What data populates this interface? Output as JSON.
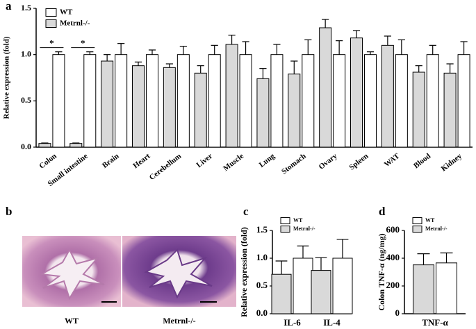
{
  "panels": [
    "a",
    "b",
    "c",
    "d"
  ],
  "micrographs": [
    "WT",
    "Metrnl-/-"
  ],
  "chart_data": [
    {
      "type": "bar",
      "ylabel": "Relative expression (fold)",
      "categories": [
        "Colon",
        "Small intestine",
        "Brain",
        "Heart",
        "Cerebellum",
        "Liver",
        "Muscle",
        "Lung",
        "Stomach",
        "Ovary",
        "Spleen",
        "WAT",
        "Blood",
        "Kidney"
      ],
      "series": [
        {
          "name": "WT",
          "color": "#ffffff",
          "values": [
            1.0,
            1.0,
            1.0,
            1.0,
            1.0,
            1.0,
            1.0,
            1.0,
            1.0,
            1.0,
            1.0,
            1.0,
            1.0,
            1.0
          ],
          "errors": [
            0.03,
            0.03,
            0.12,
            0.05,
            0.09,
            0.1,
            0.14,
            0.11,
            0.16,
            0.15,
            0.03,
            0.16,
            0.1,
            0.14
          ]
        },
        {
          "name": "Metrnl-/-",
          "color": "#d9d9d9",
          "values": [
            0.04,
            0.04,
            0.93,
            0.88,
            0.86,
            0.8,
            1.11,
            0.74,
            0.79,
            1.29,
            1.18,
            1.1,
            0.81,
            0.8
          ],
          "errors": [
            0.005,
            0.005,
            0.07,
            0.04,
            0.04,
            0.08,
            0.1,
            0.11,
            0.14,
            0.09,
            0.08,
            0.1,
            0.07,
            0.1
          ]
        }
      ],
      "annotations": [
        "*",
        "*"
      ],
      "ylim": [
        0,
        1.5
      ],
      "yticks": [
        {
          "value": 0,
          "label": "0.0"
        },
        {
          "value": 0.5,
          "label": "0.5"
        },
        {
          "value": 1,
          "label": "1.0"
        },
        {
          "value": 1.5,
          "label": "1.5"
        }
      ],
      "legend": "upper left"
    },
    {
      "type": "bar",
      "ylabel": "Relative expression (fold)",
      "categories": [
        "IL-6",
        "IL-4"
      ],
      "series": [
        {
          "name": "WT",
          "color": "#ffffff",
          "values": [
            1.0,
            1.0
          ],
          "errors": [
            0.22,
            0.34
          ]
        },
        {
          "name": "Metrnl-/-",
          "color": "#d9d9d9",
          "values": [
            0.71,
            0.78
          ],
          "errors": [
            0.24,
            0.23
          ]
        }
      ],
      "ylim": [
        0,
        1.5
      ],
      "yticks": [
        {
          "value": 0,
          "label": "0.0"
        },
        {
          "value": 0.5,
          "label": "0.5"
        },
        {
          "value": 1,
          "label": "1.0"
        },
        {
          "value": 1.5,
          "label": "1.5"
        }
      ],
      "legend": "upper left"
    },
    {
      "type": "bar",
      "ylabel": "Colon TNF-α (ng/mg)",
      "categories": [
        "TNF-α"
      ],
      "series": [
        {
          "name": "WT",
          "color": "#ffffff",
          "values": [
            366
          ],
          "errors": [
            72
          ]
        },
        {
          "name": "Metrnl-/-",
          "color": "#d9d9d9",
          "values": [
            352
          ],
          "errors": [
            80
          ]
        }
      ],
      "ylim": [
        0,
        600
      ],
      "yticks": [
        0,
        200,
        400,
        600
      ],
      "legend": "upper left"
    }
  ]
}
